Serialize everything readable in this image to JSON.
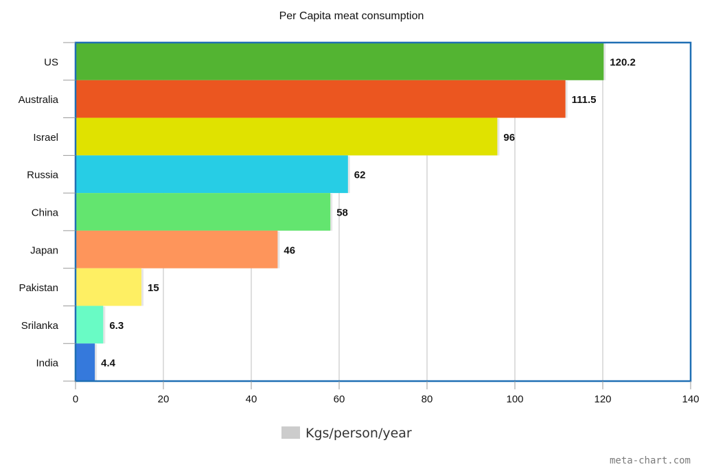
{
  "chart_data": {
    "type": "bar",
    "orientation": "horizontal",
    "title": "Per Capita meat consumption",
    "categories": [
      "US",
      "Australia",
      "Israel",
      "Russia",
      "China",
      "Japan",
      "Pakistan",
      "Srilanka",
      "India"
    ],
    "series": [
      {
        "name": "Kgs/person/year",
        "values": [
          120.2,
          111.5,
          96,
          62,
          58,
          46,
          15,
          6.3,
          4.4
        ],
        "value_labels": [
          "120.2",
          "111.5",
          "96",
          "62",
          "58",
          "46",
          "15",
          "6.3",
          "4.4"
        ]
      }
    ],
    "bar_colors": [
      "#53b432",
      "#eb5620",
      "#e0e200",
      "#27cde5",
      "#63e56f",
      "#fe955b",
      "#feef63",
      "#69fbc5",
      "#3579dc"
    ],
    "xlim": [
      0,
      140
    ],
    "xticks": [
      0,
      20,
      40,
      60,
      80,
      100,
      120,
      140
    ],
    "xtick_labels": [
      "0",
      "20",
      "40",
      "60",
      "80",
      "100",
      "120",
      "140"
    ],
    "grid": true,
    "legend": {
      "position": "bottom",
      "label": "Kgs/person/year",
      "color": "#cccccc"
    },
    "frame_color": "#1f6fb4",
    "grid_color": "#c8c8c8"
  },
  "watermark": "meta-chart.com"
}
